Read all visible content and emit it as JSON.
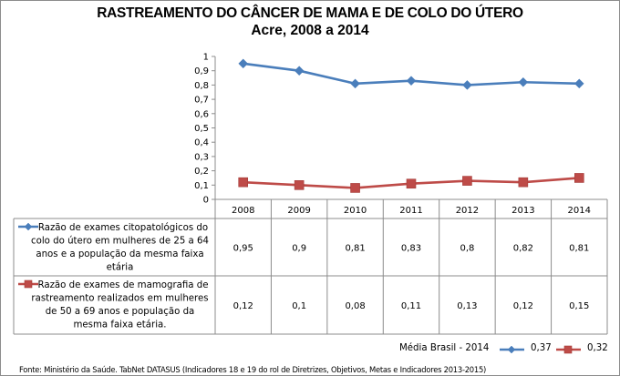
{
  "chart_data": {
    "type": "line",
    "title": "RASTREAMENTO DO CÂNCER DE MAMA E DE COLO DO ÚTERO",
    "subtitle": "Acre, 2008 a 2014",
    "xlabel": "",
    "ylabel": "",
    "ylim": [
      0,
      1
    ],
    "yticks": [
      "0",
      "0,1",
      "0,2",
      "0,3",
      "0,4",
      "0,5",
      "0,6",
      "0,7",
      "0,8",
      "0,9",
      "1"
    ],
    "categories": [
      "2008",
      "2009",
      "2010",
      "2011",
      "2012",
      "2013",
      "2014"
    ],
    "grid": false,
    "data_table": true,
    "series": [
      {
        "name": "Razão de exames citopatológicos do colo do útero em mulheres de 25 a 64 anos e a população da mesma faixa etária",
        "name_lines": [
          "Razão de exames citopatológicos do",
          "colo do útero em mulheres de 25 a 64",
          "anos e a população da mesma faixa",
          "etária"
        ],
        "values": [
          0.95,
          0.9,
          0.81,
          0.83,
          0.8,
          0.82,
          0.81
        ],
        "labels": [
          "0,95",
          "0,9",
          "0,81",
          "0,83",
          "0,8",
          "0,82",
          "0,81"
        ],
        "color": "#4a7ebb",
        "marker": "diamond"
      },
      {
        "name": "Razão de exames de mamografia de rastreamento realizados em mulheres de 50 a 69 anos e população da mesma faixa etária.",
        "name_lines": [
          "Razão de exames de mamografia de",
          "rastreamento realizados em mulheres",
          "de 50 a 69 anos e população da",
          "mesma faixa etária."
        ],
        "values": [
          0.12,
          0.1,
          0.08,
          0.11,
          0.13,
          0.12,
          0.15
        ],
        "labels": [
          "0,12",
          "0,1",
          "0,08",
          "0,11",
          "0,13",
          "0,12",
          "0,15"
        ],
        "color": "#be4b48",
        "marker": "square"
      }
    ],
    "annotations": {
      "media_label": "Média Brasil - 2014",
      "media_values": [
        "0,37",
        "0,32"
      ]
    },
    "source": "Fonte: Ministério da Saúde. TabNet DATASUS (Indicadores 18 e 19 do rol de Diretrizes, Objetivos, Metas e Indicadores 2013-2015)"
  }
}
